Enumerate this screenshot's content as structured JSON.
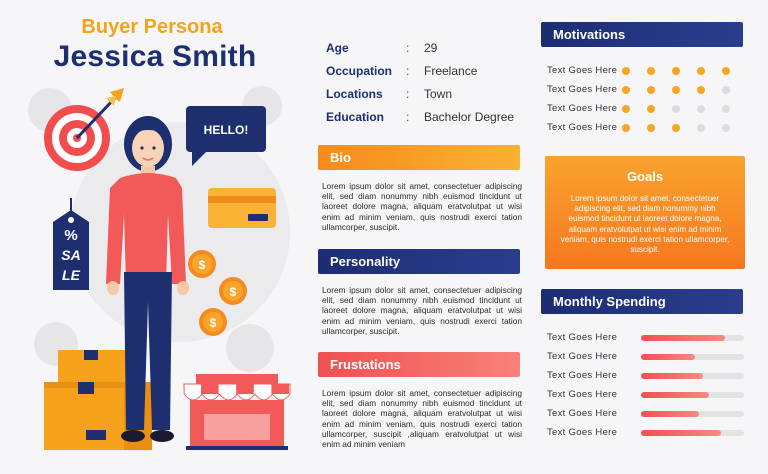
{
  "header": {
    "subtitle": "Buyer Persona",
    "name": "Jessica Smith"
  },
  "illustration": {
    "speech_bubble": "HELLO!",
    "tag_percent": "%",
    "tag_sale_1": "SA",
    "tag_sale_2": "LE",
    "coin_symbol": "$"
  },
  "info": [
    {
      "label": "Age",
      "value": "29"
    },
    {
      "label": "Occupation",
      "value": "Freelance"
    },
    {
      "label": "Locations",
      "value": "Town"
    },
    {
      "label": "Education",
      "value": "Bachelor Degree"
    }
  ],
  "colon": ":",
  "bio": {
    "title": "Bio",
    "text": "Lorem ipsum dolor sit amet, consectetuer adipiscing elit, sed diam nonummy nibh euismod tincidunt ut laoreet dolore magna, aliquam eratvolutpat ut wisi enim ad minim veniam, quis nostrudi exerci tation ullamcorper, suscipit."
  },
  "personality": {
    "title": "Personality",
    "text": "Lorem ipsum dolor sit amet, consectetuer adipiscing elit, sed diam nonummy nibh euismod tincidunt ut laoreet dolore magna, aliquam eratvolutpat ut wisi enim ad minim veniam, quis nostrudi exerci tation ullamcorper, suscipit."
  },
  "frustations": {
    "title": "Frustations",
    "text": "Lorem ipsum dolor sit amet, consectetuer adipiscing elit, sed diam nonummy nibh euismod tincidunt ut laoreet dolore magna, aliquam eratvolutpat ut wisi enim ad minim veniam, quis nostrudi exerci tation ullamcorper, suscipit ,aliquam eratvolutpat ut wisi enim ad minim veniam"
  },
  "motivations": {
    "title": "Motivations",
    "rows": [
      {
        "label": "Text Goes Here",
        "rating": 5
      },
      {
        "label": "Text Goes Here",
        "rating": 4
      },
      {
        "label": "Text Goes Here",
        "rating": 2
      },
      {
        "label": "Text Goes Here",
        "rating": 3
      }
    ],
    "max": 5
  },
  "goals": {
    "title": "Goals",
    "text": "Lorem ipsum dolor sit amet, consectetuer adipiscing elit, sed diam nonummy nibh euismod tincidunt ut laoreet dolore magna, aliquam eratvolutpat ut wisi enim ad minim veniam, quis nostrudi exerci tation ullamcorper, suscipit."
  },
  "monthly_spending": {
    "title": "Monthly Spending",
    "rows": [
      {
        "label": "Text Goes Here",
        "fraction": 0.82
      },
      {
        "label": "Text Goes Here",
        "fraction": 0.52
      },
      {
        "label": "Text Goes Here",
        "fraction": 0.6
      },
      {
        "label": "Text Goes Here",
        "fraction": 0.66
      },
      {
        "label": "Text Goes Here",
        "fraction": 0.56
      },
      {
        "label": "Text Goes Here",
        "fraction": 0.78
      }
    ]
  },
  "colors": {
    "navy": "#1d2f6f",
    "orange": "#f7a21b",
    "red": "#f05050"
  }
}
